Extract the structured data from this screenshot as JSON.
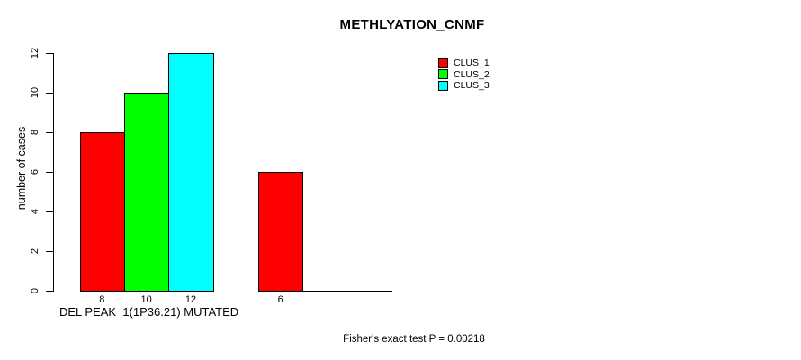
{
  "chart_data": {
    "type": "bar",
    "title": "METHLYATION_CNMF",
    "ylabel": "number of cases",
    "xlabel": "DEL PEAK  1(1P36.21) MUTATED",
    "annotation": "Fisher's exact test P = 0.00218",
    "ylim": [
      0,
      12
    ],
    "yticks": [
      0,
      2,
      4,
      6,
      8,
      10,
      12
    ],
    "grid": false,
    "legend_position": "top-right",
    "axis_color": "#000000",
    "background_color": "#ffffff",
    "groups": 2,
    "series": [
      {
        "name": "CLUS_1",
        "color": "#FF0000",
        "values": [
          8,
          6
        ]
      },
      {
        "name": "CLUS_2",
        "color": "#00FF00",
        "values": [
          10,
          0
        ]
      },
      {
        "name": "CLUS_3",
        "color": "#00FFFF",
        "values": [
          12,
          0
        ]
      }
    ],
    "bar_value_labels": [
      [
        "8",
        "10",
        "12"
      ],
      [
        "6",
        "",
        ""
      ]
    ]
  }
}
